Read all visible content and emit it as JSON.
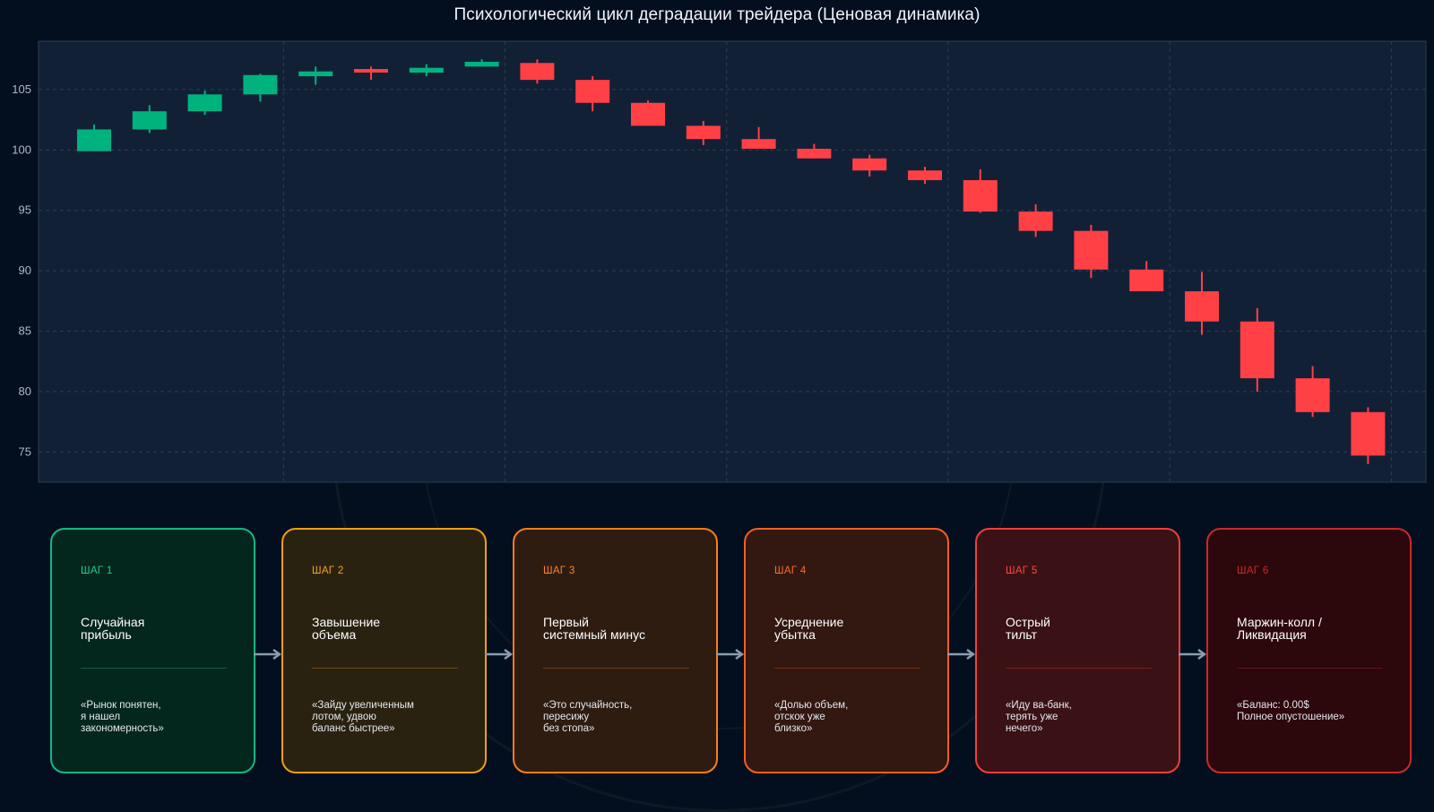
{
  "chart_data": {
    "type": "candlestick",
    "title": "Психологический цикл деградации трейдера (Ценовая динамика)",
    "ylim": [
      72.5,
      109
    ],
    "yticks": [
      75,
      80,
      85,
      90,
      95,
      100,
      105
    ],
    "grid": true,
    "candles": [
      {
        "open": 99.9,
        "close": 101.7,
        "high": 102.1,
        "low": 99.9
      },
      {
        "open": 101.7,
        "close": 103.2,
        "high": 103.7,
        "low": 101.4
      },
      {
        "open": 103.2,
        "close": 104.6,
        "high": 104.9,
        "low": 102.9
      },
      {
        "open": 104.6,
        "close": 106.2,
        "high": 106.3,
        "low": 104.0
      },
      {
        "open": 106.1,
        "close": 106.5,
        "high": 106.9,
        "low": 105.4
      },
      {
        "open": 106.7,
        "close": 106.5,
        "high": 106.9,
        "low": 105.8
      },
      {
        "open": 106.4,
        "close": 106.8,
        "high": 107.1,
        "low": 106.1
      },
      {
        "open": 106.9,
        "close": 107.3,
        "high": 107.5,
        "low": 106.9
      },
      {
        "open": 107.2,
        "close": 105.8,
        "high": 107.5,
        "low": 105.5
      },
      {
        "open": 105.8,
        "close": 103.9,
        "high": 106.1,
        "low": 103.2
      },
      {
        "open": 103.9,
        "close": 102.0,
        "high": 104.1,
        "low": 102.0
      },
      {
        "open": 102.0,
        "close": 100.9,
        "high": 102.4,
        "low": 100.4
      },
      {
        "open": 100.9,
        "close": 100.1,
        "high": 101.9,
        "low": 100.1
      },
      {
        "open": 100.1,
        "close": 99.3,
        "high": 100.5,
        "low": 99.3
      },
      {
        "open": 99.3,
        "close": 98.3,
        "high": 99.6,
        "low": 97.8
      },
      {
        "open": 98.3,
        "close": 97.5,
        "high": 98.6,
        "low": 97.2
      },
      {
        "open": 97.5,
        "close": 94.9,
        "high": 98.4,
        "low": 94.8
      },
      {
        "open": 94.9,
        "close": 93.3,
        "high": 95.5,
        "low": 92.8
      },
      {
        "open": 93.3,
        "close": 90.1,
        "high": 93.8,
        "low": 89.4
      },
      {
        "open": 90.1,
        "close": 88.3,
        "high": 90.8,
        "low": 88.3
      },
      {
        "open": 88.3,
        "close": 85.8,
        "high": 89.9,
        "low": 84.7
      },
      {
        "open": 85.8,
        "close": 81.1,
        "high": 86.9,
        "low": 80.0
      },
      {
        "open": 81.1,
        "close": 78.3,
        "high": 82.1,
        "low": 77.9
      },
      {
        "open": 78.3,
        "close": 74.7,
        "high": 78.7,
        "low": 74.0
      }
    ]
  },
  "colors": {
    "up": "#00b37e",
    "down": "#ff4045",
    "plot_bg": "#142238",
    "grid": "#2b3e56",
    "arrow": "#8a9cb0"
  },
  "steps": [
    {
      "label": "ШАГ 1",
      "title": "Случайная\nприбыль",
      "quote": "«Рынок понятен,\nя нашел\nзакономерность»",
      "border": "#12b886",
      "bg": "#03261d",
      "label_color": "#1fcf95",
      "divider": "#1b5a44"
    },
    {
      "label": "ШАГ 2",
      "title": "Завышение\nобъема",
      "quote": "«Зайду увеличенным\nлотом, удвою\nбаланс быстрее»",
      "border": "#f59f0f",
      "bg": "#2a2210",
      "label_color": "#f7a31c",
      "divider": "#6a4a10"
    },
    {
      "label": "ШАГ 3",
      "title": "Первый\nсистемный минус",
      "quote": "«Это случайность,\nпересижу\nбез стопа»",
      "border": "#fd7e14",
      "bg": "#2e1c11",
      "label_color": "#fd8524",
      "divider": "#6f3a14"
    },
    {
      "label": "ШАГ 4",
      "title": "Усреднение\nубытка",
      "quote": "«Долью объем,\nотскок уже\nблизко»",
      "border": "#fa5f1f",
      "bg": "#321810",
      "label_color": "#ff6a2a",
      "divider": "#733016"
    },
    {
      "label": "ШАГ 5",
      "title": "Острый\nтильт",
      "quote": "«Иду ва-банк,\nтерять уже\nнечего»",
      "border": "#f03e3e",
      "bg": "#3a1114",
      "label_color": "#ff4646",
      "divider": "#7a1e22"
    },
    {
      "label": "ШАГ 6",
      "title": "Маржин-колл /\nЛиквидация",
      "quote": "«Баланс: 0.00$\nПолное опустошение»",
      "border": "#c92a2a",
      "bg": "#2c070b",
      "label_color": "#c92a2a",
      "divider": "#5e1418"
    }
  ]
}
